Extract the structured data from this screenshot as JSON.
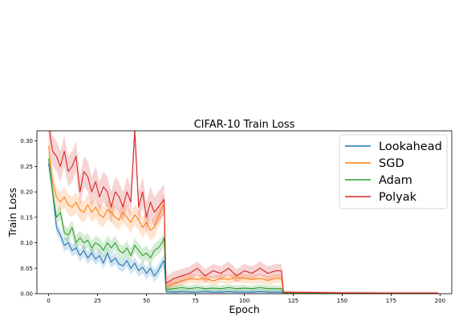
{
  "chart_data": {
    "type": "line",
    "title": "CIFAR-10 Train Loss",
    "xlabel": "Epoch",
    "ylabel": "Train Loss",
    "xlim": [
      -6,
      206
    ],
    "ylim": [
      0,
      0.32
    ],
    "x_ticks": [
      0,
      25,
      50,
      75,
      100,
      125,
      150,
      175,
      200
    ],
    "x_tick_labels": [
      "0",
      "25",
      "50",
      "75",
      "100",
      "125",
      "150",
      "175",
      "200"
    ],
    "y_ticks": [
      0.0,
      0.05,
      0.1,
      0.15,
      0.2,
      0.25,
      0.3
    ],
    "y_tick_labels": [
      "0.00",
      "0.05",
      "0.10",
      "0.15",
      "0.20",
      "0.25",
      "0.30"
    ],
    "grid": false,
    "legend_position": "top-right",
    "series": [
      {
        "name": "Lookahead",
        "color": "#1f77b4",
        "band_spread": 0.012,
        "x": [
          0,
          2,
          4,
          6,
          8,
          10,
          12,
          14,
          16,
          18,
          20,
          22,
          24,
          26,
          28,
          30,
          32,
          34,
          36,
          38,
          40,
          42,
          44,
          46,
          48,
          50,
          52,
          54,
          56,
          58,
          59,
          60,
          64,
          68,
          72,
          76,
          80,
          84,
          88,
          92,
          96,
          100,
          104,
          108,
          112,
          116,
          119,
          120,
          130,
          140,
          150,
          160,
          170,
          180,
          190,
          199
        ],
        "y": [
          0.255,
          0.2,
          0.13,
          0.115,
          0.095,
          0.1,
          0.085,
          0.09,
          0.075,
          0.085,
          0.07,
          0.08,
          0.068,
          0.075,
          0.06,
          0.08,
          0.062,
          0.07,
          0.058,
          0.055,
          0.065,
          0.05,
          0.06,
          0.045,
          0.052,
          0.04,
          0.05,
          0.035,
          0.045,
          0.06,
          0.065,
          0.004,
          0.003,
          0.004,
          0.003,
          0.003,
          0.004,
          0.003,
          0.003,
          0.004,
          0.003,
          0.003,
          0.003,
          0.004,
          0.003,
          0.003,
          0.003,
          0.001,
          0.0008,
          0.0007,
          0.0006,
          0.0005,
          0.0005,
          0.0005,
          0.0005,
          0.0005
        ]
      },
      {
        "name": "SGD",
        "color": "#ff7f0e",
        "band_spread": 0.02,
        "x": [
          0,
          2,
          4,
          6,
          8,
          10,
          12,
          14,
          16,
          18,
          20,
          22,
          24,
          26,
          28,
          30,
          32,
          34,
          36,
          38,
          40,
          42,
          44,
          46,
          48,
          50,
          52,
          54,
          56,
          58,
          59,
          60,
          64,
          68,
          72,
          76,
          80,
          84,
          88,
          92,
          96,
          100,
          104,
          108,
          112,
          116,
          119,
          120,
          130,
          140,
          150,
          160,
          170,
          180,
          190,
          199
        ],
        "y": [
          0.29,
          0.22,
          0.19,
          0.18,
          0.19,
          0.175,
          0.17,
          0.18,
          0.165,
          0.16,
          0.175,
          0.16,
          0.17,
          0.155,
          0.15,
          0.165,
          0.16,
          0.15,
          0.145,
          0.16,
          0.15,
          0.14,
          0.155,
          0.145,
          0.13,
          0.14,
          0.125,
          0.13,
          0.15,
          0.17,
          0.175,
          0.015,
          0.02,
          0.025,
          0.03,
          0.028,
          0.03,
          0.025,
          0.03,
          0.028,
          0.032,
          0.03,
          0.028,
          0.03,
          0.026,
          0.03,
          0.03,
          0.002,
          0.0015,
          0.001,
          0.001,
          0.001,
          0.0008,
          0.0008,
          0.0008,
          0.0008
        ]
      },
      {
        "name": "Adam",
        "color": "#2ca02c",
        "band_spread": 0.014,
        "x": [
          0,
          2,
          4,
          6,
          8,
          10,
          12,
          14,
          16,
          18,
          20,
          22,
          24,
          26,
          28,
          30,
          32,
          34,
          36,
          38,
          40,
          42,
          44,
          46,
          48,
          50,
          52,
          54,
          56,
          58,
          59,
          60,
          64,
          68,
          72,
          76,
          80,
          84,
          88,
          92,
          96,
          100,
          104,
          108,
          112,
          116,
          119,
          120,
          130,
          140,
          150,
          160,
          170,
          180,
          190,
          199
        ],
        "y": [
          0.265,
          0.2,
          0.15,
          0.16,
          0.12,
          0.115,
          0.13,
          0.1,
          0.11,
          0.1,
          0.105,
          0.09,
          0.1,
          0.095,
          0.085,
          0.1,
          0.09,
          0.1,
          0.085,
          0.08,
          0.09,
          0.075,
          0.095,
          0.085,
          0.075,
          0.08,
          0.07,
          0.085,
          0.09,
          0.1,
          0.11,
          0.008,
          0.01,
          0.012,
          0.01,
          0.012,
          0.01,
          0.011,
          0.01,
          0.012,
          0.01,
          0.011,
          0.01,
          0.012,
          0.01,
          0.01,
          0.01,
          0.0015,
          0.001,
          0.0008,
          0.0008,
          0.0007,
          0.0007,
          0.0007,
          0.0007,
          0.0007
        ]
      },
      {
        "name": "Polyak",
        "color": "#d62728",
        "band_spread": 0.03,
        "x": [
          0,
          2,
          4,
          6,
          8,
          10,
          12,
          14,
          16,
          18,
          20,
          22,
          24,
          26,
          28,
          30,
          32,
          34,
          36,
          38,
          40,
          42,
          44,
          46,
          48,
          50,
          52,
          54,
          56,
          58,
          59,
          60,
          64,
          68,
          72,
          76,
          80,
          84,
          88,
          92,
          96,
          100,
          104,
          108,
          112,
          116,
          119,
          120,
          130,
          140,
          150,
          160,
          170,
          180,
          190,
          199
        ],
        "y": [
          0.33,
          0.28,
          0.27,
          0.25,
          0.28,
          0.24,
          0.25,
          0.27,
          0.2,
          0.24,
          0.23,
          0.2,
          0.22,
          0.19,
          0.21,
          0.2,
          0.17,
          0.2,
          0.19,
          0.17,
          0.2,
          0.18,
          0.32,
          0.17,
          0.2,
          0.15,
          0.18,
          0.16,
          0.17,
          0.18,
          0.185,
          0.02,
          0.03,
          0.035,
          0.04,
          0.05,
          0.035,
          0.045,
          0.04,
          0.05,
          0.035,
          0.045,
          0.04,
          0.05,
          0.04,
          0.045,
          0.045,
          0.003,
          0.0025,
          0.002,
          0.0015,
          0.0015,
          0.0012,
          0.0012,
          0.0012,
          0.0012
        ]
      }
    ]
  }
}
